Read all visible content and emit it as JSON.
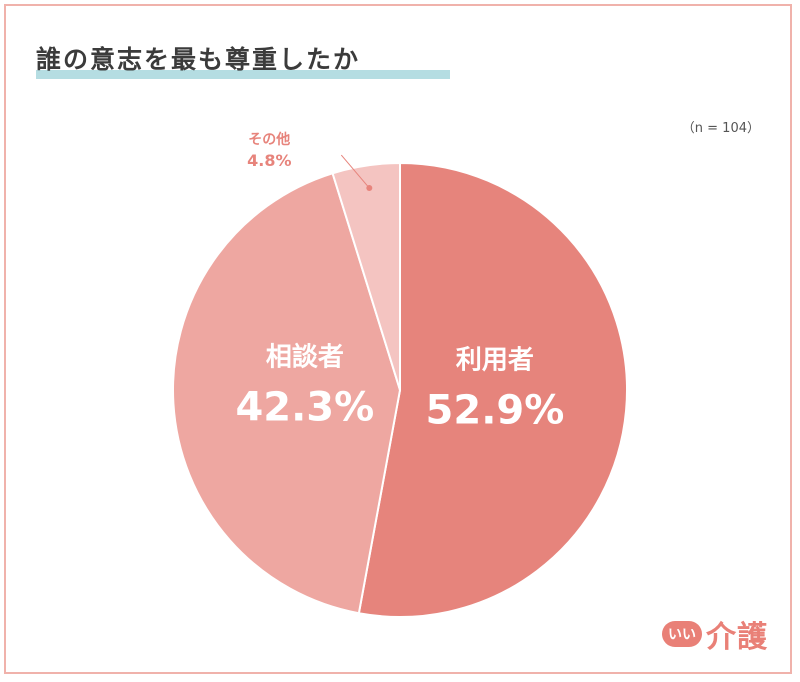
{
  "title": "誰の意志を最も尊重したか",
  "sample_note": "（n = 104）",
  "logo": {
    "badge": "いい",
    "text": "介護"
  },
  "colors": {
    "frame": "#f0b2ab",
    "title_bar": "#b5dde2",
    "accent": "#e98077"
  },
  "chart_data": {
    "type": "pie",
    "title": "誰の意志を最も尊重したか",
    "slices": [
      {
        "label": "利用者",
        "value": 52.9,
        "display": "52.9%",
        "color": "#e6847c"
      },
      {
        "label": "相談者",
        "value": 42.3,
        "display": "42.3%",
        "color": "#eea7a1"
      },
      {
        "label": "その他",
        "value": 4.8,
        "display": "4.8%",
        "color": "#f4c4c1"
      }
    ]
  }
}
